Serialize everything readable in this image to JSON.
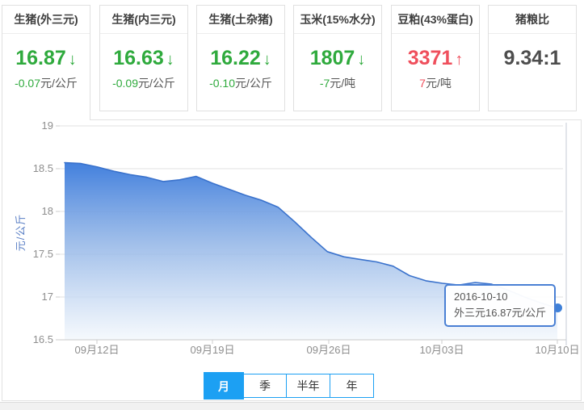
{
  "cards": [
    {
      "title": "生猪(外三元)",
      "value": "16.87",
      "arrow": "↓",
      "trend": "down",
      "change": "-0.07",
      "unit": "元/公斤",
      "selected": true
    },
    {
      "title": "生猪(内三元)",
      "value": "16.63",
      "arrow": "↓",
      "trend": "down",
      "change": "-0.09",
      "unit": "元/公斤",
      "selected": false
    },
    {
      "title": "生猪(土杂猪)",
      "value": "16.22",
      "arrow": "↓",
      "trend": "down",
      "change": "-0.10",
      "unit": "元/公斤",
      "selected": false
    },
    {
      "title": "玉米(15%水分)",
      "value": "1807",
      "arrow": "↓",
      "trend": "down",
      "change": "-7",
      "unit": "元/吨",
      "selected": false
    },
    {
      "title": "豆粕(43%蛋白)",
      "value": "3371",
      "arrow": "↑",
      "trend": "up",
      "change": "7",
      "unit": "元/吨",
      "selected": false
    },
    {
      "title": "猪粮比",
      "value": "9.34:1",
      "arrow": "",
      "trend": "none",
      "change": "",
      "unit": "",
      "selected": false
    }
  ],
  "chart_data": {
    "type": "area",
    "series_name": "外三元",
    "title": "",
    "xlabel": "",
    "ylabel": "元/公斤",
    "ylim": [
      16.5,
      19
    ],
    "yticks": [
      19,
      18.5,
      18,
      17.5,
      17,
      16.5
    ],
    "ytick_labels": [
      "19",
      "18.5",
      "18",
      "17.5",
      "17",
      "16.5"
    ],
    "xtick_labels": [
      "09月12日",
      "09月19日",
      "09月26日",
      "10月03日",
      "10月10日"
    ],
    "grid": true,
    "legend_position": "none",
    "x": [
      "09-10",
      "09-11",
      "09-12",
      "09-13",
      "09-14",
      "09-15",
      "09-16",
      "09-17",
      "09-18",
      "09-19",
      "09-20",
      "09-21",
      "09-22",
      "09-23",
      "09-24",
      "09-25",
      "09-26",
      "09-27",
      "09-28",
      "09-29",
      "09-30",
      "10-01",
      "10-02",
      "10-03",
      "10-04",
      "10-05",
      "10-06",
      "10-07",
      "10-08",
      "10-09",
      "10-10"
    ],
    "values": [
      18.57,
      18.56,
      18.52,
      18.47,
      18.43,
      18.4,
      18.35,
      18.37,
      18.41,
      18.33,
      18.26,
      18.19,
      18.13,
      18.05,
      17.88,
      17.7,
      17.53,
      17.47,
      17.44,
      17.41,
      17.36,
      17.25,
      17.19,
      17.16,
      17.14,
      17.17,
      17.15,
      17.08,
      17.0,
      16.93,
      16.87
    ]
  },
  "tooltip": {
    "date": "2016-10-10",
    "text": "外三元16.87元/公斤"
  },
  "tabs": [
    {
      "label": "月",
      "active": true
    },
    {
      "label": "季",
      "active": false
    },
    {
      "label": "半年",
      "active": false
    },
    {
      "label": "年",
      "active": false
    }
  ],
  "colors": {
    "down_green": "#2faa3d",
    "up_red": "#ef4f5c",
    "tab_blue": "#1ca0f3",
    "line_blue": "#3a72cc",
    "fill_top": "#3d7cdc",
    "fill_bottom": "#f2f7fc",
    "marker_blue": "#3f80d8",
    "axis_label_blue": "#5a7fc5"
  }
}
